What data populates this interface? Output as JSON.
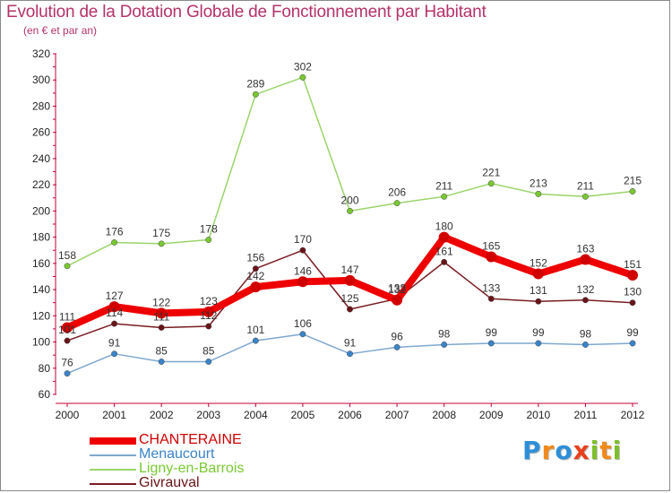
{
  "header": {
    "title": "Evolution de la Dotation Globale de Fonctionnement par Habitant",
    "subtitle": "(en € et par an)"
  },
  "brand": {
    "text": "Proxiti",
    "letters": [
      {
        "char": "P",
        "color": "#2e8fd8"
      },
      {
        "char": "r",
        "color": "#f08a1c"
      },
      {
        "char": "o",
        "color": "#2e8fd8"
      },
      {
        "char": "x",
        "color": "#e8401c"
      },
      {
        "char": "i",
        "color": "#7cc02a"
      },
      {
        "char": "t",
        "color": "#f08a1c"
      },
      {
        "char": "i",
        "color": "#7cc02a"
      }
    ]
  },
  "chart_data": {
    "type": "line",
    "title": "Evolution de la Dotation Globale de Fonctionnement par Habitant",
    "subtitle": "(en € et par an)",
    "xlabel": "",
    "ylabel": "",
    "x": [
      "2000",
      "2001",
      "2002",
      "2003",
      "2004",
      "2005",
      "2006",
      "2007",
      "2008",
      "2009",
      "2010",
      "2011",
      "2012"
    ],
    "ylim": [
      60,
      320
    ],
    "yticks": [
      60,
      80,
      100,
      120,
      140,
      160,
      180,
      200,
      220,
      240,
      260,
      280,
      300,
      320
    ],
    "grid": false,
    "legend_position": "bottom-left",
    "series": [
      {
        "name": "CHANTERAINE",
        "color": "#ee0000",
        "marker": "#d10000",
        "emphasis": true,
        "values": [
          111,
          127,
          122,
          123,
          142,
          146,
          147,
          132,
          180,
          165,
          152,
          163,
          151
        ]
      },
      {
        "name": "Menaucourt",
        "color": "#7fa8d0",
        "marker": "#3a84c9",
        "emphasis": false,
        "values": [
          76,
          91,
          85,
          85,
          101,
          106,
          91,
          96,
          98,
          99,
          99,
          98,
          99
        ]
      },
      {
        "name": "Ligny-en-Barrois",
        "color": "#9ad46a",
        "marker": "#79c832",
        "emphasis": false,
        "values": [
          158,
          176,
          175,
          178,
          289,
          302,
          200,
          206,
          211,
          221,
          213,
          211,
          215
        ]
      },
      {
        "name": "Givrauval",
        "color": "#7a1c22",
        "marker": "#6a1418",
        "emphasis": false,
        "values": [
          101,
          114,
          111,
          112,
          156,
          170,
          125,
          133,
          161,
          133,
          131,
          132,
          130
        ]
      }
    ]
  }
}
